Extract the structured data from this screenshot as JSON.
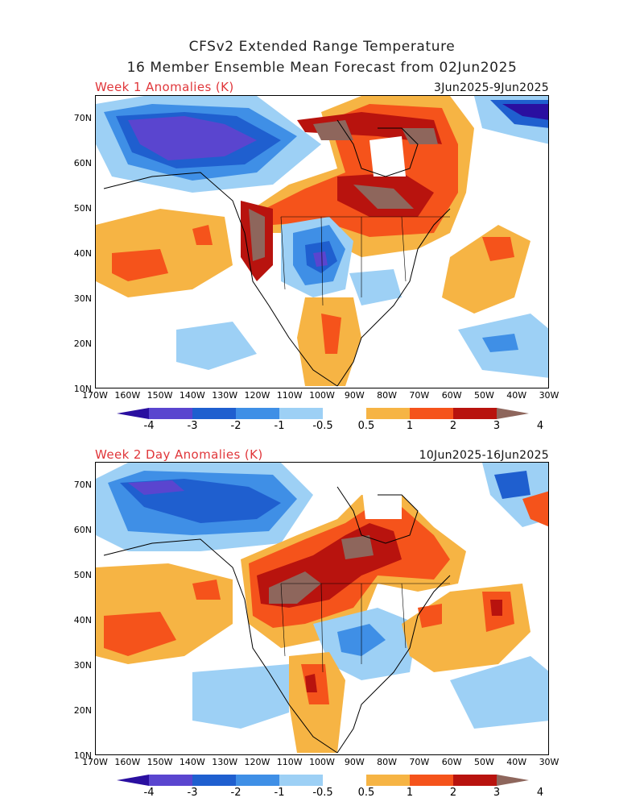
{
  "header": {
    "line1": "CFSv2 Extended Range Temperature",
    "line2": "16 Member Ensemble Mean Forecast from 02Jun2025"
  },
  "panels": [
    {
      "title": "Week 1 Anomalies (K)",
      "dates": "3Jun2025-9Jun2025"
    },
    {
      "title": "Week 2 Day Anomalies (K)",
      "dates": "10Jun2025-16Jun2025"
    }
  ],
  "axes": {
    "lat_labels": [
      "70N",
      "60N",
      "50N",
      "40N",
      "30N",
      "20N",
      "10N"
    ],
    "lon_labels": [
      "170W",
      "160W",
      "150W",
      "140W",
      "130W",
      "120W",
      "110W",
      "100W",
      "90W",
      "80W",
      "70W",
      "60W",
      "50W",
      "40W",
      "30W"
    ]
  },
  "colorbar": {
    "labels": [
      "-4",
      "-3",
      "-2",
      "-1",
      "-0.5",
      "0.5",
      "1",
      "2",
      "3",
      "4"
    ],
    "colors": [
      "#2a0fa0",
      "#5a45cf",
      "#1f5fcf",
      "#3f8fe6",
      "#9dd0f5",
      "#ffffff",
      "#f6b444",
      "#f5531b",
      "#b8130e",
      "#8e665c"
    ]
  }
}
